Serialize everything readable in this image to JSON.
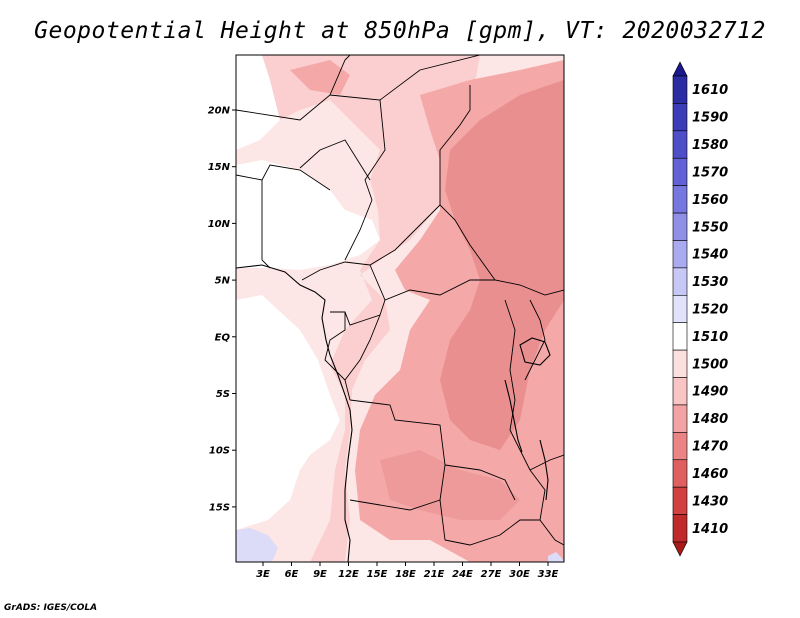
{
  "title": "Geopotential Height at 850hPa [gpm], VT: 2020032712",
  "credit": "GrADS: IGES/COLA",
  "map": {
    "x_ticks": [
      "3E",
      "6E",
      "9E",
      "12E",
      "15E",
      "18E",
      "21E",
      "24E",
      "27E",
      "30E",
      "33E"
    ],
    "y_ticks": [
      "20N",
      "15N",
      "10N",
      "5N",
      "EQ",
      "5S",
      "10S",
      "15S"
    ]
  },
  "colorbar": {
    "levels": [
      "1610",
      "1590",
      "1580",
      "1570",
      "1560",
      "1550",
      "1540",
      "1530",
      "1520",
      "1510",
      "1500",
      "1490",
      "1480",
      "1470",
      "1460",
      "1430",
      "1410"
    ],
    "colors": [
      "#1a1a8c",
      "#2b2ba3",
      "#3c3cb8",
      "#4e4ec9",
      "#6262d6",
      "#7777e0",
      "#8f8fe8",
      "#aaaaf0",
      "#c8c8f6",
      "#e2e2fb",
      "#ffffff",
      "#fce0e0",
      "#f9c4c4",
      "#f3a3a3",
      "#eb8585",
      "#e06060",
      "#d24040",
      "#c02a2a",
      "#a81a1a"
    ]
  },
  "colors": {
    "very_light": "#fde6e6",
    "light": "#fbcfcf",
    "medium": "#f5a8a8",
    "darker": "#e98f8f",
    "blueish": "#dcdcf8"
  }
}
